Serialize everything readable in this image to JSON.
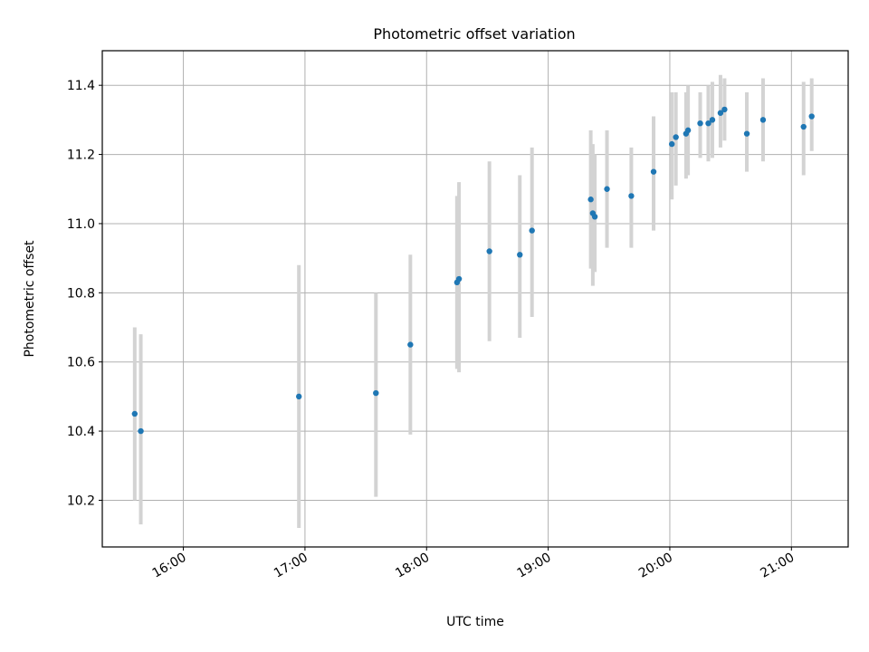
{
  "chart_data": {
    "type": "scatter",
    "title": "Photometric offset variation",
    "xlabel": "UTC time",
    "ylabel": "Photometric offset",
    "x_unit": "UTC time (HH:MM)",
    "xlim": [
      "15:20",
      "21:28"
    ],
    "ylim": [
      10.065,
      11.5
    ],
    "xticks": [
      "16:00",
      "17:00",
      "18:00",
      "19:00",
      "20:00",
      "21:00"
    ],
    "yticks": [
      10.2,
      10.4,
      10.6,
      10.8,
      11.0,
      11.2,
      11.4
    ],
    "grid": true,
    "marker_color": "#1f77b4",
    "errorbar_color": "#d3d3d3",
    "points": [
      {
        "time": "15:36",
        "y": 10.45,
        "lo": 10.2,
        "hi": 10.7
      },
      {
        "time": "15:39",
        "y": 10.4,
        "lo": 10.13,
        "hi": 10.68
      },
      {
        "time": "16:57",
        "y": 10.5,
        "lo": 10.12,
        "hi": 10.88
      },
      {
        "time": "17:35",
        "y": 10.51,
        "lo": 10.21,
        "hi": 10.8
      },
      {
        "time": "17:52",
        "y": 10.65,
        "lo": 10.39,
        "hi": 10.91
      },
      {
        "time": "18:15",
        "y": 10.83,
        "lo": 10.58,
        "hi": 11.08
      },
      {
        "time": "18:16",
        "y": 10.84,
        "lo": 10.57,
        "hi": 11.12
      },
      {
        "time": "18:31",
        "y": 10.92,
        "lo": 10.66,
        "hi": 11.18
      },
      {
        "time": "18:46",
        "y": 10.91,
        "lo": 10.67,
        "hi": 11.14
      },
      {
        "time": "18:52",
        "y": 10.98,
        "lo": 10.73,
        "hi": 11.22
      },
      {
        "time": "19:21",
        "y": 11.07,
        "lo": 10.87,
        "hi": 11.27
      },
      {
        "time": "19:22",
        "y": 11.03,
        "lo": 10.82,
        "hi": 11.23
      },
      {
        "time": "19:23",
        "y": 11.02,
        "lo": 10.86,
        "hi": 11.2
      },
      {
        "time": "19:29",
        "y": 11.1,
        "lo": 10.93,
        "hi": 11.27
      },
      {
        "time": "19:41",
        "y": 11.08,
        "lo": 10.93,
        "hi": 11.22
      },
      {
        "time": "19:52",
        "y": 11.15,
        "lo": 10.98,
        "hi": 11.31
      },
      {
        "time": "20:01",
        "y": 11.23,
        "lo": 11.07,
        "hi": 11.38
      },
      {
        "time": "20:03",
        "y": 11.25,
        "lo": 11.11,
        "hi": 11.38
      },
      {
        "time": "20:08",
        "y": 11.26,
        "lo": 11.13,
        "hi": 11.38
      },
      {
        "time": "20:09",
        "y": 11.27,
        "lo": 11.14,
        "hi": 11.4
      },
      {
        "time": "20:15",
        "y": 11.29,
        "lo": 11.19,
        "hi": 11.38
      },
      {
        "time": "20:19",
        "y": 11.29,
        "lo": 11.18,
        "hi": 11.4
      },
      {
        "time": "20:21",
        "y": 11.3,
        "lo": 11.19,
        "hi": 11.41
      },
      {
        "time": "20:25",
        "y": 11.32,
        "lo": 11.22,
        "hi": 11.43
      },
      {
        "time": "20:27",
        "y": 11.33,
        "lo": 11.24,
        "hi": 11.42
      },
      {
        "time": "20:38",
        "y": 11.26,
        "lo": 11.15,
        "hi": 11.38
      },
      {
        "time": "20:46",
        "y": 11.3,
        "lo": 11.18,
        "hi": 11.42
      },
      {
        "time": "21:06",
        "y": 11.28,
        "lo": 11.14,
        "hi": 11.41
      },
      {
        "time": "21:10",
        "y": 11.31,
        "lo": 11.21,
        "hi": 11.42
      }
    ]
  }
}
